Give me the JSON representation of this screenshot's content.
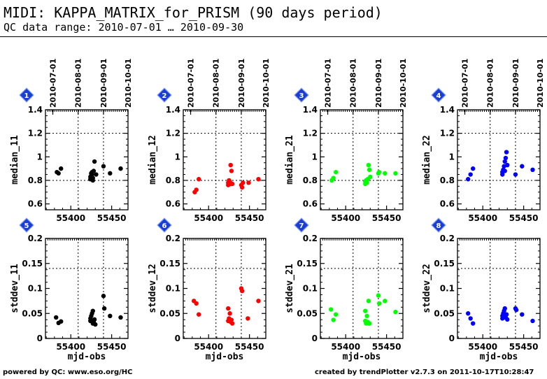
{
  "header": {
    "title": "MIDI: KAPPA_MATRIX_for_PRISM (90 days period)",
    "subtitle": "QC data range: 2010-07-01 … 2010-09-30"
  },
  "footer": {
    "left": "powered by QC: www.eso.org/HC",
    "right": "created by trendPlotter v2.7.3 on 2011-10-17T10:28:47"
  },
  "chart_data": [
    {
      "id": 1,
      "type": "scatter",
      "ylabel": "median_11",
      "xlabel": "",
      "color": "#000000",
      "ylim": [
        0.55,
        1.4
      ],
      "yticks": [
        0.6,
        0.8,
        1,
        1.2,
        1.4
      ],
      "ytick_labels": [
        "0.6",
        "0.8",
        "1",
        "1.2",
        "1.4"
      ],
      "xlim": [
        55369,
        55470
      ],
      "xticks": [
        55400,
        55450
      ],
      "xtick_labels": [
        "55400",
        "55450"
      ],
      "top_ticks": [
        "2010-07-01",
        "2010-08-01",
        "2010-09-01",
        "2010-10-01"
      ],
      "points": [
        [
          55383,
          0.87
        ],
        [
          55385,
          0.86
        ],
        [
          55388,
          0.9
        ],
        [
          55424,
          0.81
        ],
        [
          55424,
          0.83
        ],
        [
          55425,
          0.86
        ],
        [
          55425,
          0.84
        ],
        [
          55426,
          0.87
        ],
        [
          55426,
          0.85
        ],
        [
          55427,
          0.8
        ],
        [
          55427,
          0.82
        ],
        [
          55428,
          0.88
        ],
        [
          55429,
          0.96
        ],
        [
          55431,
          0.85
        ],
        [
          55440,
          0.92
        ],
        [
          55448,
          0.86
        ],
        [
          55461,
          0.9
        ]
      ]
    },
    {
      "id": 2,
      "type": "scatter",
      "ylabel": "median_12",
      "xlabel": "",
      "color": "#ff0000",
      "ylim": [
        0.55,
        1.4
      ],
      "yticks": [
        0.6,
        0.8,
        1,
        1.2,
        1.4
      ],
      "ytick_labels": [
        "0.6",
        "0.8",
        "1",
        "1.2",
        "1.4"
      ],
      "xlim": [
        55369,
        55470
      ],
      "xticks": [
        55400,
        55450
      ],
      "xtick_labels": [
        "55400",
        "55450"
      ],
      "top_ticks": [
        "2010-07-01",
        "2010-08-01",
        "2010-09-01",
        "2010-10-01"
      ],
      "points": [
        [
          55383,
          0.7
        ],
        [
          55385,
          0.72
        ],
        [
          55388,
          0.81
        ],
        [
          55424,
          0.76
        ],
        [
          55424,
          0.78
        ],
        [
          55425,
          0.8
        ],
        [
          55426,
          0.79
        ],
        [
          55427,
          0.77
        ],
        [
          55427,
          0.93
        ],
        [
          55428,
          0.88
        ],
        [
          55429,
          0.77
        ],
        [
          55440,
          0.76
        ],
        [
          55441,
          0.74
        ],
        [
          55442,
          0.78
        ],
        [
          55449,
          0.78
        ],
        [
          55461,
          0.81
        ]
      ]
    },
    {
      "id": 3,
      "type": "scatter",
      "ylabel": "median_21",
      "xlabel": "",
      "color": "#00ff00",
      "ylim": [
        0.55,
        1.4
      ],
      "yticks": [
        0.6,
        0.8,
        1,
        1.2,
        1.4
      ],
      "ytick_labels": [
        "0.6",
        "0.8",
        "1",
        "1.2",
        "1.4"
      ],
      "xlim": [
        55369,
        55470
      ],
      "xticks": [
        55400,
        55450
      ],
      "xtick_labels": [
        "55400",
        "55450"
      ],
      "top_ticks": [
        "2010-07-01",
        "2010-08-01",
        "2010-09-01",
        "2010-10-01"
      ],
      "points": [
        [
          55383,
          0.8
        ],
        [
          55385,
          0.82
        ],
        [
          55388,
          0.87
        ],
        [
          55424,
          0.77
        ],
        [
          55424,
          0.79
        ],
        [
          55425,
          0.8
        ],
        [
          55426,
          0.78
        ],
        [
          55427,
          0.81
        ],
        [
          55428,
          0.93
        ],
        [
          55429,
          0.89
        ],
        [
          55430,
          0.83
        ],
        [
          55440,
          0.86
        ],
        [
          55441,
          0.87
        ],
        [
          55448,
          0.86
        ],
        [
          55461,
          0.86
        ]
      ]
    },
    {
      "id": 4,
      "type": "scatter",
      "ylabel": "median_22",
      "xlabel": "",
      "color": "#0000ff",
      "ylim": [
        0.55,
        1.4
      ],
      "yticks": [
        0.6,
        0.8,
        1,
        1.2,
        1.4
      ],
      "ytick_labels": [
        "0.6",
        "0.8",
        "1",
        "1.2",
        "1.4"
      ],
      "xlim": [
        55369,
        55470
      ],
      "xticks": [
        55400,
        55450
      ],
      "xtick_labels": [
        "55400",
        "55450"
      ],
      "top_ticks": [
        "2010-07-01",
        "2010-08-01",
        "2010-09-01",
        "2010-10-01"
      ],
      "points": [
        [
          55382,
          0.81
        ],
        [
          55385,
          0.85
        ],
        [
          55388,
          0.9
        ],
        [
          55424,
          0.85
        ],
        [
          55424,
          0.87
        ],
        [
          55425,
          0.89
        ],
        [
          55426,
          0.92
        ],
        [
          55427,
          0.88
        ],
        [
          55427,
          0.96
        ],
        [
          55428,
          0.99
        ],
        [
          55429,
          1.04
        ],
        [
          55430,
          0.93
        ],
        [
          55440,
          0.85
        ],
        [
          55448,
          0.92
        ],
        [
          55461,
          0.89
        ]
      ]
    },
    {
      "id": 5,
      "type": "scatter",
      "ylabel": "stddev_11",
      "xlabel": "mjd-obs",
      "color": "#000000",
      "ylim": [
        0,
        0.2
      ],
      "yticks": [
        0,
        0.05,
        0.1,
        0.15,
        0.2
      ],
      "ytick_labels": [
        "0",
        "0.05",
        "0.1",
        "0.15",
        "0.2"
      ],
      "xlim": [
        55369,
        55470
      ],
      "xticks": [
        55400,
        55450
      ],
      "xtick_labels": [
        "55400",
        "55450"
      ],
      "top_ticks": [],
      "points": [
        [
          55382,
          0.042
        ],
        [
          55385,
          0.031
        ],
        [
          55388,
          0.034
        ],
        [
          55424,
          0.04
        ],
        [
          55424,
          0.035
        ],
        [
          55425,
          0.045
        ],
        [
          55426,
          0.05
        ],
        [
          55427,
          0.055
        ],
        [
          55427,
          0.03
        ],
        [
          55428,
          0.033
        ],
        [
          55429,
          0.038
        ],
        [
          55430,
          0.028
        ],
        [
          55440,
          0.085
        ],
        [
          55441,
          0.06
        ],
        [
          55448,
          0.045
        ],
        [
          55461,
          0.042
        ]
      ]
    },
    {
      "id": 6,
      "type": "scatter",
      "ylabel": "stddev_12",
      "xlabel": "mjd-obs",
      "color": "#ff0000",
      "ylim": [
        0,
        0.2
      ],
      "yticks": [
        0,
        0.05,
        0.1,
        0.15,
        0.2
      ],
      "ytick_labels": [
        "0",
        "0.05",
        "0.1",
        "0.15",
        "0.2"
      ],
      "xlim": [
        55369,
        55470
      ],
      "xticks": [
        55400,
        55450
      ],
      "xtick_labels": [
        "55400",
        "55450"
      ],
      "top_ticks": [],
      "points": [
        [
          55382,
          0.075
        ],
        [
          55385,
          0.07
        ],
        [
          55388,
          0.048
        ],
        [
          55424,
          0.06
        ],
        [
          55424,
          0.035
        ],
        [
          55425,
          0.04
        ],
        [
          55426,
          0.05
        ],
        [
          55427,
          0.033
        ],
        [
          55428,
          0.037
        ],
        [
          55429,
          0.03
        ],
        [
          55440,
          0.1
        ],
        [
          55441,
          0.095
        ],
        [
          55448,
          0.04
        ],
        [
          55461,
          0.075
        ]
      ]
    },
    {
      "id": 7,
      "type": "scatter",
      "ylabel": "stddev_21",
      "xlabel": "mjd-obs",
      "color": "#00ff00",
      "ylim": [
        0,
        0.2
      ],
      "yticks": [
        0,
        0.05,
        0.1,
        0.15,
        0.2
      ],
      "ytick_labels": [
        "0",
        "0.05",
        "0.1",
        "0.15",
        "0.2"
      ],
      "xlim": [
        55369,
        55470
      ],
      "xticks": [
        55400,
        55450
      ],
      "xtick_labels": [
        "55400",
        "55450"
      ],
      "top_ticks": [],
      "points": [
        [
          55382,
          0.058
        ],
        [
          55385,
          0.037
        ],
        [
          55388,
          0.048
        ],
        [
          55424,
          0.055
        ],
        [
          55424,
          0.035
        ],
        [
          55425,
          0.03
        ],
        [
          55426,
          0.045
        ],
        [
          55427,
          0.033
        ],
        [
          55428,
          0.075
        ],
        [
          55429,
          0.03
        ],
        [
          55440,
          0.086
        ],
        [
          55441,
          0.07
        ],
        [
          55448,
          0.075
        ],
        [
          55461,
          0.053
        ]
      ]
    },
    {
      "id": 8,
      "type": "scatter",
      "ylabel": "stddev_22",
      "xlabel": "mjd-obs",
      "color": "#0000ff",
      "ylim": [
        0,
        0.2
      ],
      "yticks": [
        0,
        0.05,
        0.1,
        0.15,
        0.2
      ],
      "ytick_labels": [
        "0",
        "0.05",
        "0.1",
        "0.15",
        "0.2"
      ],
      "xlim": [
        55369,
        55470
      ],
      "xticks": [
        55400,
        55450
      ],
      "xtick_labels": [
        "55400",
        "55450"
      ],
      "top_ticks": [],
      "points": [
        [
          55382,
          0.05
        ],
        [
          55385,
          0.04
        ],
        [
          55388,
          0.03
        ],
        [
          55424,
          0.045
        ],
        [
          55424,
          0.04
        ],
        [
          55425,
          0.05
        ],
        [
          55426,
          0.055
        ],
        [
          55427,
          0.06
        ],
        [
          55428,
          0.042
        ],
        [
          55429,
          0.048
        ],
        [
          55430,
          0.038
        ],
        [
          55440,
          0.06
        ],
        [
          55441,
          0.057
        ],
        [
          55448,
          0.048
        ],
        [
          55461,
          0.035
        ]
      ]
    }
  ]
}
